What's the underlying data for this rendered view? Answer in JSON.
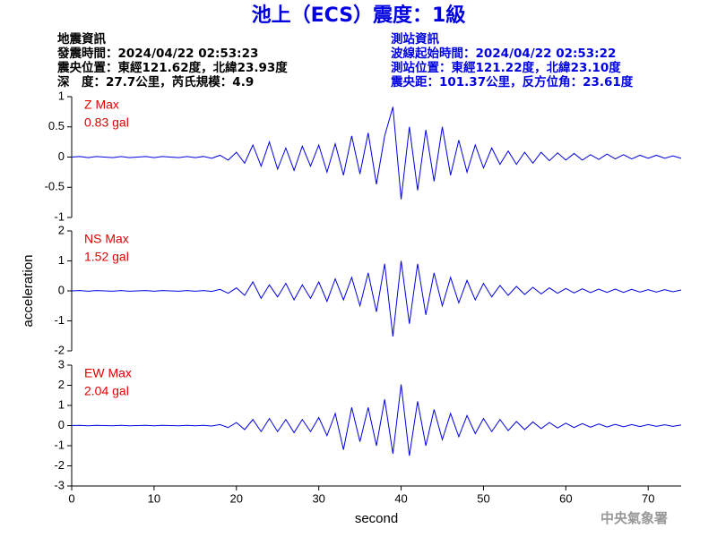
{
  "header": {
    "title": "池上（ECS）震度：1級",
    "left": [
      "地震資訊",
      "發震時間：2024/04/22 02:53:23",
      "震央位置：東經121.62度，北緯23.93度",
      "深　度：27.7公里，芮氏規模：4.9"
    ],
    "right": [
      "測站資訊",
      "波線起始時間：2024/04/22 02:53:22",
      "測站位置：東經121.22度，北緯23.10度",
      "震央距：101.37公里，反方位角：23.61度"
    ]
  },
  "footer": "中央氣象署",
  "chart_data": [
    {
      "type": "line",
      "annotations": [
        "Z Max",
        "0.83 gal"
      ],
      "annotation_color": "#e00000",
      "color": "#0000e0",
      "xlim": [
        0,
        74
      ],
      "ylim": [
        -1,
        1
      ],
      "yticks": [
        -1,
        -0.5,
        0,
        0.5,
        1
      ],
      "x": [
        0,
        1,
        2,
        3,
        4,
        5,
        6,
        7,
        8,
        9,
        10,
        11,
        12,
        13,
        14,
        15,
        16,
        17,
        18,
        19,
        20,
        21,
        22,
        23,
        24,
        25,
        26,
        27,
        28,
        29,
        30,
        31,
        32,
        33,
        34,
        35,
        36,
        37,
        38,
        39,
        40,
        41,
        42,
        43,
        44,
        45,
        46,
        47,
        48,
        49,
        50,
        51,
        52,
        53,
        54,
        55,
        56,
        57,
        58,
        59,
        60,
        61,
        62,
        63,
        64,
        65,
        66,
        67,
        68,
        69,
        70,
        71,
        72,
        73,
        74
      ],
      "values": [
        0,
        0.01,
        -0.01,
        0.01,
        0,
        -0.01,
        0.01,
        -0.01,
        0,
        0.01,
        -0.01,
        0.01,
        0,
        -0.01,
        0.01,
        -0.01,
        0.01,
        -0.02,
        0.03,
        -0.05,
        0.08,
        -0.1,
        0.2,
        -0.15,
        0.25,
        -0.2,
        0.15,
        -0.22,
        0.18,
        -0.15,
        0.2,
        -0.25,
        0.22,
        -0.3,
        0.35,
        -0.28,
        0.4,
        -0.45,
        0.35,
        0.83,
        -0.7,
        0.5,
        -0.55,
        0.45,
        -0.4,
        0.5,
        -0.3,
        0.28,
        -0.25,
        0.2,
        -0.18,
        0.15,
        -0.12,
        0.1,
        -0.12,
        0.08,
        -0.1,
        0.08,
        -0.06,
        0.07,
        -0.05,
        0.06,
        -0.05,
        0.04,
        -0.04,
        0.05,
        -0.03,
        0.04,
        -0.03,
        0.03,
        -0.02,
        0.03,
        -0.02,
        0.02,
        -0.02
      ]
    },
    {
      "type": "line",
      "annotations": [
        "NS Max",
        "1.52 gal"
      ],
      "annotation_color": "#e00000",
      "color": "#0000e0",
      "ylabel": "acceleration",
      "xlim": [
        0,
        74
      ],
      "ylim": [
        -2,
        2
      ],
      "yticks": [
        -2,
        -1,
        0,
        1,
        2
      ],
      "x": [
        0,
        1,
        2,
        3,
        4,
        5,
        6,
        7,
        8,
        9,
        10,
        11,
        12,
        13,
        14,
        15,
        16,
        17,
        18,
        19,
        20,
        21,
        22,
        23,
        24,
        25,
        26,
        27,
        28,
        29,
        30,
        31,
        32,
        33,
        34,
        35,
        36,
        37,
        38,
        39,
        40,
        41,
        42,
        43,
        44,
        45,
        46,
        47,
        48,
        49,
        50,
        51,
        52,
        53,
        54,
        55,
        56,
        57,
        58,
        59,
        60,
        61,
        62,
        63,
        64,
        65,
        66,
        67,
        68,
        69,
        70,
        71,
        72,
        73,
        74
      ],
      "values": [
        0,
        0.01,
        -0.01,
        0.01,
        0,
        -0.01,
        0.01,
        -0.01,
        0,
        0.01,
        -0.01,
        0.01,
        0,
        -0.01,
        0.01,
        -0.01,
        0.01,
        -0.02,
        0.05,
        -0.08,
        0.1,
        -0.15,
        0.3,
        -0.25,
        0.2,
        -0.2,
        0.25,
        -0.3,
        0.2,
        -0.25,
        0.3,
        -0.35,
        0.4,
        -0.3,
        0.45,
        -0.5,
        0.6,
        -0.7,
        0.9,
        -1.52,
        1,
        -1.1,
        0.9,
        -0.8,
        0.6,
        -0.5,
        0.45,
        -0.4,
        0.35,
        -0.3,
        0.25,
        -0.2,
        0.18,
        -0.15,
        0.15,
        -0.12,
        0.12,
        -0.1,
        0.1,
        -0.08,
        0.08,
        -0.07,
        0.07,
        -0.06,
        0.06,
        -0.05,
        0.06,
        -0.05,
        0.05,
        -0.04,
        0.04,
        -0.04,
        0.04,
        -0.03,
        0.03
      ]
    },
    {
      "type": "line",
      "annotations": [
        "EW Max",
        "2.04 gal"
      ],
      "annotation_color": "#e00000",
      "color": "#0000e0",
      "xlabel": "second",
      "xlim": [
        0,
        74
      ],
      "xticks": [
        0,
        10,
        20,
        30,
        40,
        50,
        60,
        70
      ],
      "ylim": [
        -3,
        3
      ],
      "yticks": [
        -3,
        -2,
        -1,
        0,
        1,
        2,
        3
      ],
      "x": [
        0,
        1,
        2,
        3,
        4,
        5,
        6,
        7,
        8,
        9,
        10,
        11,
        12,
        13,
        14,
        15,
        16,
        17,
        18,
        19,
        20,
        21,
        22,
        23,
        24,
        25,
        26,
        27,
        28,
        29,
        30,
        31,
        32,
        33,
        34,
        35,
        36,
        37,
        38,
        39,
        40,
        41,
        42,
        43,
        44,
        45,
        46,
        47,
        48,
        49,
        50,
        51,
        52,
        53,
        54,
        55,
        56,
        57,
        58,
        59,
        60,
        61,
        62,
        63,
        64,
        65,
        66,
        67,
        68,
        69,
        70,
        71,
        72,
        73,
        74
      ],
      "values": [
        0,
        0.01,
        -0.01,
        0.01,
        0,
        -0.01,
        0.01,
        -0.01,
        0,
        0.01,
        -0.01,
        0.01,
        0,
        -0.01,
        0.01,
        -0.01,
        0.01,
        -0.02,
        0.05,
        -0.1,
        0.15,
        -0.2,
        0.3,
        -0.3,
        0.35,
        -0.3,
        0.3,
        -0.35,
        0.3,
        -0.3,
        0.4,
        -0.5,
        0.6,
        -1.2,
        0.9,
        -0.8,
        0.9,
        -1,
        1.3,
        -1.4,
        2.04,
        -1.5,
        1.2,
        -1,
        0.8,
        -0.7,
        0.6,
        -0.55,
        0.5,
        -0.4,
        0.35,
        -0.3,
        0.3,
        -0.25,
        0.2,
        -0.2,
        0.18,
        -0.15,
        0.15,
        -0.12,
        0.12,
        -0.1,
        0.1,
        -0.08,
        0.08,
        -0.07,
        0.06,
        -0.06,
        0.05,
        -0.05,
        0.05,
        -0.04,
        0.04,
        -0.04,
        0.03
      ]
    }
  ]
}
